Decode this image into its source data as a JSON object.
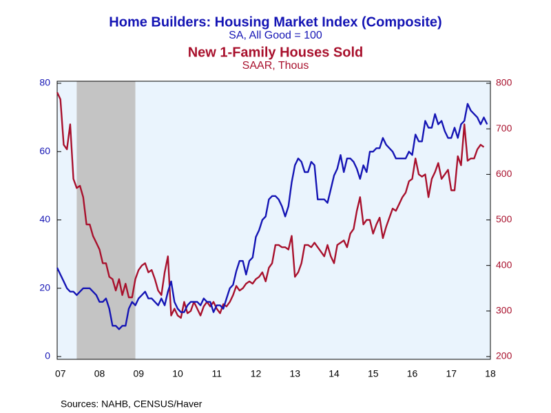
{
  "chart_data": {
    "type": "line",
    "source": "Sources:  NAHB, CENSUS/Haver",
    "categories": [
      null,
      "07",
      null,
      null,
      null,
      null,
      null,
      null,
      null,
      null,
      null,
      null,
      null,
      "08",
      null,
      null,
      null,
      null,
      null,
      null,
      null,
      null,
      null,
      null,
      null,
      "09",
      null,
      null,
      null,
      null,
      null,
      null,
      null,
      null,
      null,
      null,
      null,
      "10",
      null,
      null,
      null,
      null,
      null,
      null,
      null,
      null,
      null,
      null,
      null,
      "11",
      null,
      null,
      null,
      null,
      null,
      null,
      null,
      null,
      null,
      null,
      null,
      "12",
      null,
      null,
      null,
      null,
      null,
      null,
      null,
      null,
      null,
      null,
      null,
      "13",
      null,
      null,
      null,
      null,
      null,
      null,
      null,
      null,
      null,
      null,
      null,
      "14",
      null,
      null,
      null,
      null,
      null,
      null,
      null,
      null,
      null,
      null,
      null,
      "15",
      null,
      null,
      null,
      null,
      null,
      null,
      null,
      null,
      null,
      null,
      null,
      "16",
      null,
      null,
      null,
      null,
      null,
      null,
      null,
      null,
      null,
      null,
      null,
      "17",
      null,
      null,
      null,
      null,
      null,
      null,
      null,
      null,
      null,
      null,
      null,
      "18"
    ],
    "series": [
      {
        "name": "Home Builders: Housing Market Index (Composite)",
        "subtitle": "SA, All Good = 100",
        "color": "#1414b4",
        "values": [
          26,
          24,
          22,
          20,
          19,
          19,
          18,
          19,
          20,
          20,
          20,
          19,
          18,
          16,
          16,
          17,
          14,
          9,
          9,
          8,
          9,
          9,
          14,
          16,
          15,
          17,
          18,
          19,
          17,
          17,
          16,
          15,
          17,
          15,
          19,
          22,
          16,
          14,
          13,
          13,
          15,
          16,
          16,
          16,
          15,
          17,
          16,
          16,
          13,
          15,
          15,
          14,
          17,
          20,
          21,
          25,
          28,
          28,
          24,
          28,
          29,
          35,
          37,
          40,
          41,
          46,
          47,
          47,
          46,
          44,
          41,
          44,
          51,
          56,
          58,
          57,
          54,
          54,
          57,
          56,
          46,
          46,
          46,
          45,
          49,
          53,
          55,
          59,
          54,
          58,
          58,
          57,
          55,
          52,
          56,
          54,
          60,
          60,
          61,
          61,
          64,
          62,
          61,
          60,
          58,
          58,
          58,
          58,
          60,
          59,
          65,
          63,
          63,
          69,
          67,
          67,
          71,
          68,
          69,
          66,
          64,
          64,
          67,
          64,
          68,
          69,
          74,
          72,
          71,
          70,
          68,
          70,
          68,
          null
        ]
      },
      {
        "name": "New 1-Family Houses Sold",
        "subtitle": "SAAR, Thous",
        "color": "#a8102c",
        "axis": "y2",
        "values": [
          780,
          765,
          665,
          655,
          710,
          590,
          570,
          575,
          550,
          490,
          490,
          465,
          450,
          435,
          405,
          405,
          375,
          370,
          345,
          370,
          335,
          360,
          330,
          330,
          370,
          390,
          400,
          405,
          385,
          390,
          370,
          345,
          335,
          385,
          420,
          290,
          305,
          290,
          285,
          320,
          295,
          300,
          320,
          305,
          290,
          310,
          320,
          310,
          320,
          305,
          295,
          315,
          310,
          320,
          335,
          355,
          345,
          350,
          360,
          365,
          360,
          370,
          375,
          385,
          365,
          395,
          405,
          445,
          445,
          440,
          440,
          435,
          465,
          375,
          385,
          405,
          445,
          445,
          440,
          450,
          440,
          430,
          420,
          445,
          420,
          405,
          445,
          450,
          455,
          440,
          470,
          480,
          520,
          550,
          490,
          500,
          500,
          470,
          490,
          505,
          460,
          485,
          505,
          525,
          520,
          535,
          550,
          560,
          585,
          590,
          635,
          600,
          595,
          600,
          550,
          590,
          605,
          625,
          590,
          600,
          610,
          565,
          565,
          640,
          620,
          710,
          630,
          635,
          635,
          655,
          665,
          660,
          null,
          null
        ]
      }
    ],
    "recessions": [
      {
        "start": 6,
        "end": 24
      }
    ],
    "recession_color": "#c4c4c4",
    "plot_background": "#eaf4fd",
    "ylim": [
      0,
      80
    ],
    "yticks": [
      0,
      20,
      40,
      60,
      80
    ],
    "y2lim": [
      200,
      800
    ],
    "y2ticks": [
      200,
      300,
      400,
      500,
      600,
      700,
      800
    ],
    "grid": false
  }
}
